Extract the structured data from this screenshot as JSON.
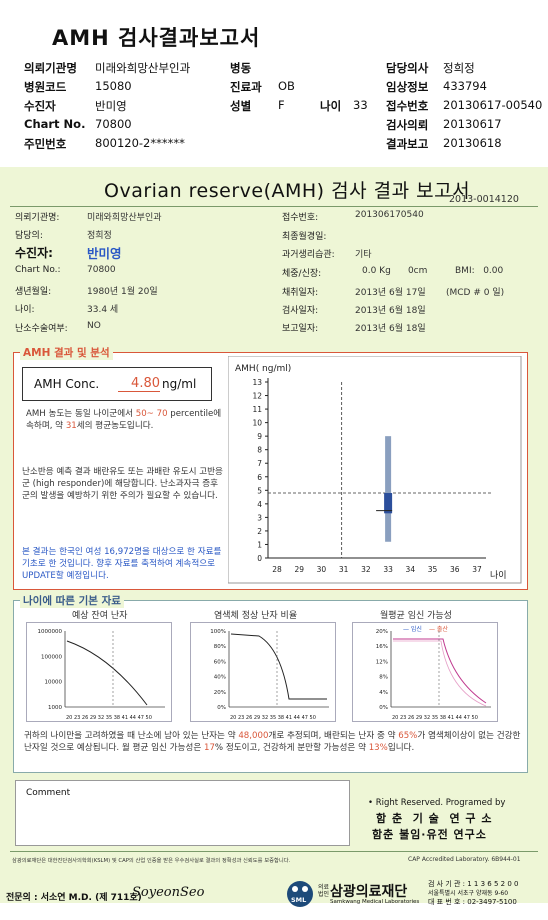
{
  "header": {
    "title": "AMH 검사결과보고서",
    "rows_left": [
      {
        "label": "의뢰기관명",
        "value": "미래와희망산부인과"
      },
      {
        "label": "병원코드",
        "value": "15080"
      },
      {
        "label": "수진자",
        "value": "반미영"
      },
      {
        "label": "Chart No.",
        "value": "70800"
      },
      {
        "label": "주민번호",
        "value": "800120-2******"
      }
    ],
    "ward_label": "병동",
    "dept_label": "진료과",
    "dept_value": "OB",
    "sex_label": "성별",
    "sex_value": "F",
    "age_label": "나이",
    "age_value": "33",
    "rows_right": [
      {
        "label": "담당의사",
        "value": "정희정"
      },
      {
        "label": "임상정보",
        "value": "433794"
      },
      {
        "label": "접수번호",
        "value": "20130617-00540"
      },
      {
        "label": "검사의뢰",
        "value": "20130617"
      },
      {
        "label": "결과보고",
        "value": "20130618"
      }
    ]
  },
  "report": {
    "title": "Ovarian reserve(AMH) 검사 결과 보고서",
    "report_id": "2013-0014120",
    "left_fields": [
      {
        "label": "의뢰기관명:",
        "value": "미래와희망산부인과"
      },
      {
        "label": "담당의:",
        "value": "정희정"
      },
      {
        "label": "수진자:",
        "value": "반미영"
      },
      {
        "label": "Chart No.:",
        "value": "70800"
      },
      {
        "label": "생년월일:",
        "value": "1980년 1월 20일"
      },
      {
        "label": "나이:",
        "value": "33.4 세"
      },
      {
        "label": "난소수술여부:",
        "value": "NO"
      }
    ],
    "right_fields": [
      {
        "label": "접수번호:",
        "value": "201306170540"
      },
      {
        "label": "최종월경일:",
        "value": ""
      },
      {
        "label": "과거생리습관:",
        "value": "기타"
      },
      {
        "label": "체중/신장:",
        "value": "0.0 Kg      0cm"
      },
      {
        "label": "채취일자:",
        "value": "2013년 6월 17일"
      },
      {
        "label": "검사일자:",
        "value": "2013년 6월 18일"
      },
      {
        "label": "보고일자:",
        "value": "2013년 6월 18일"
      }
    ],
    "bmi": "BMI:   0.00",
    "mcd": "(MCD # 0 일)"
  },
  "amh_section": {
    "heading": "AMH 결과 및 분석",
    "conc_label": "AMH Conc.",
    "conc_value": "4.80",
    "conc_unit": "ng/ml",
    "para1_a": "AMH 농도는 동일 나이군에서",
    "para1_pct": "50~ 70",
    "para1_b": "percentile에 속하며, 약",
    "para1_age": "31",
    "para1_c": "세의 평균농도입니다.",
    "para2": "난소반응 예측 결과 배란유도 또는 과배란 유도시 고반응군 (high responder)에 해당합니다. 난소과자극 증후군의 발생을 예방하기 위한 주의가 필요할 수 있습니다.",
    "para3": "본 결과는 한국인 여성 16,972명을 대상으로 한 자료를 기초로 한 것입니다. 향후 자료를 축적하여 계속적으로 UPDATE할 예정입니다."
  },
  "chart_data": {
    "type": "box",
    "ylabel": "AMH( ng/ml)",
    "xlabel": "나이",
    "x_ticks": [
      "28",
      "29",
      "30",
      "31",
      "32",
      "33",
      "34",
      "35",
      "36",
      "37"
    ],
    "ylim": [
      0,
      13
    ],
    "y_ticks": [
      "0",
      "1",
      "2",
      "3",
      "4",
      "5",
      "6",
      "7",
      "8",
      "9",
      "10",
      "11",
      "12",
      "13"
    ],
    "box": {
      "age": "33",
      "low": 1.2,
      "q1": 3.3,
      "q3": 4.8,
      "high": 9.0
    },
    "median_marker": 3.5,
    "patient": {
      "age": 33.4,
      "amh": 4.8
    }
  },
  "age_section": {
    "heading": "나이에 따른 기본 자료",
    "chart1_title": "예상 잔여 난자",
    "chart1_yticks": [
      "1000000",
      "100000",
      "10000",
      "1000"
    ],
    "chart2_title": "염색체 정상 난자 비율",
    "chart2_yticks": [
      "100%",
      "80%",
      "60%",
      "40%",
      "20%",
      "0%"
    ],
    "chart3_title": "월평균 임신 가능성",
    "chart3_legend_a": "임신",
    "chart3_legend_b": "출산",
    "chart3_yticks": [
      "20%",
      "16%",
      "12%",
      "8%",
      "4%",
      "0%"
    ],
    "x_ticks": "20 23 26 29 32 35 38 41 44 47 50",
    "summary_a": "귀하의 나이만을 고려하였을 때 난소에 남아 있는 난자는 약",
    "eggs": "48,000",
    "summary_b": "개로 추정되며, 배란되는 난자 중 약",
    "normal_pct": "65%",
    "summary_c": "가 염색체이상이 없는 건강한 난자일 것으로 예상됩니다. 월 평균 임신 가능성은",
    "preg_pct": "17",
    "summary_d": "% 정도이고, 건강하게 분만할 가능성은 약",
    "birth_pct": "13%",
    "summary_e": "입니다."
  },
  "comment": {
    "label": "Comment"
  },
  "footer": {
    "rights": "• Right Reserved. Programed by",
    "lab1": "함 춘  기 술  연 구 소",
    "lab2": "함춘 불임·유전 연구소",
    "cert": "삼광의료재단은 대한진단검사의학회(KSLM) 및 CAP의 산업 인증을 받은 우수검사실로 결과의 정확성과 신뢰도를 보증합니다.",
    "cap": "CAP Accredited Laboratory. 6B944-01",
    "doctor": "전문의 : 서소연 M.D. (제 711호)",
    "signature": "SoyeonSeo",
    "org_small": "의료 법인",
    "org": "삼광의료재단",
    "org_en": "Samkwang Medical Laboratories",
    "contact1": "검 사 기 관 : 1 1 3 6 5 2 0 0",
    "contact2": "서울특별시 서초구 양재동 9-60",
    "contact3": "대 표 번 호 : 02-3497-5100"
  }
}
